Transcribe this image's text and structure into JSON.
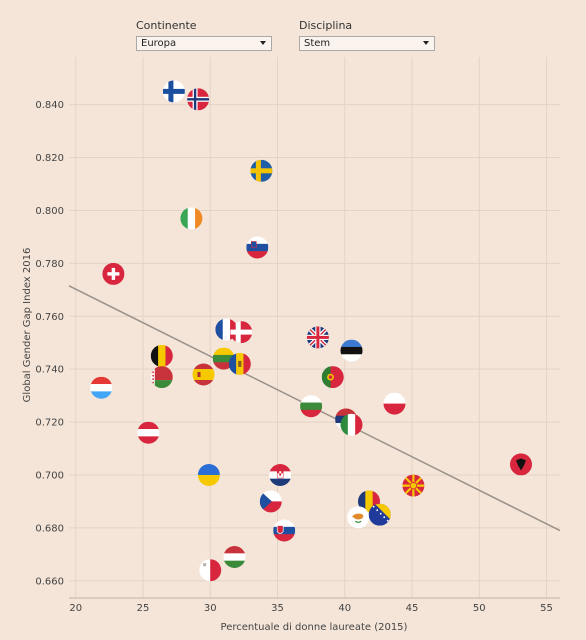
{
  "controls": {
    "continent": {
      "label": "Continente",
      "value": "Europa"
    },
    "discipline": {
      "label": "Disciplina",
      "value": "Stem"
    }
  },
  "chart_data": {
    "type": "scatter",
    "xlabel": "Percentuale di donne laureate (2015)",
    "ylabel": "Global Gender Gap Index 2016",
    "xlim": [
      19.5,
      56
    ],
    "ylim": [
      0.6535,
      0.858
    ],
    "xticks": [
      20,
      25,
      30,
      35,
      40,
      45,
      50,
      55
    ],
    "yticks": [
      0.66,
      0.68,
      0.7,
      0.72,
      0.74,
      0.76,
      0.78,
      0.8,
      0.82,
      0.84
    ],
    "grid": true,
    "trendline": {
      "x": [
        19.5,
        56
      ],
      "y": [
        0.7715,
        0.679
      ]
    },
    "points": [
      {
        "country": "Finland",
        "flag": "finland-flag",
        "x": 27.3,
        "y": 0.845
      },
      {
        "country": "Norway",
        "flag": "norway-flag",
        "x": 29.1,
        "y": 0.842
      },
      {
        "country": "Sweden",
        "flag": "sweden-flag",
        "x": 33.8,
        "y": 0.815
      },
      {
        "country": "Ireland",
        "flag": "ireland-flag",
        "x": 28.6,
        "y": 0.797
      },
      {
        "country": "Slovenia",
        "flag": "slovenia-flag",
        "x": 33.5,
        "y": 0.786
      },
      {
        "country": "Switzerland",
        "flag": "switzerland-flag",
        "x": 22.8,
        "y": 0.776
      },
      {
        "country": "France",
        "flag": "france-flag",
        "x": 31.2,
        "y": 0.755
      },
      {
        "country": "Denmark",
        "flag": "denmark-flag",
        "x": 32.3,
        "y": 0.754
      },
      {
        "country": "United Kingdom",
        "flag": "uk-flag",
        "x": 38.0,
        "y": 0.752
      },
      {
        "country": "Estonia",
        "flag": "estonia-flag",
        "x": 40.5,
        "y": 0.747
      },
      {
        "country": "Belgium",
        "flag": "belgium-flag",
        "x": 26.4,
        "y": 0.745
      },
      {
        "country": "Lithuania",
        "flag": "lithuania-flag",
        "x": 31.0,
        "y": 0.744
      },
      {
        "country": "Moldova",
        "flag": "moldova-flag",
        "x": 32.2,
        "y": 0.742
      },
      {
        "country": "Spain",
        "flag": "spain-flag",
        "x": 29.5,
        "y": 0.738
      },
      {
        "country": "Belarus",
        "flag": "belarus-flag",
        "x": 26.4,
        "y": 0.737
      },
      {
        "country": "Portugal",
        "flag": "portugal-flag",
        "x": 39.1,
        "y": 0.737
      },
      {
        "country": "Luxembourg",
        "flag": "luxembourg-flag",
        "x": 21.9,
        "y": 0.733
      },
      {
        "country": "Poland",
        "flag": "poland-flag",
        "x": 43.7,
        "y": 0.727
      },
      {
        "country": "Bulgaria",
        "flag": "bulgaria-flag",
        "x": 37.5,
        "y": 0.726
      },
      {
        "country": "Serbia",
        "flag": "serbia-flag",
        "x": 40.1,
        "y": 0.721
      },
      {
        "country": "Italy",
        "flag": "italy-flag",
        "x": 40.5,
        "y": 0.719
      },
      {
        "country": "Austria",
        "flag": "austria-flag",
        "x": 25.4,
        "y": 0.716
      },
      {
        "country": "Albania",
        "flag": "albania-flag",
        "x": 53.1,
        "y": 0.704
      },
      {
        "country": "Ukraine",
        "flag": "ukraine-flag",
        "x": 29.9,
        "y": 0.7
      },
      {
        "country": "Croatia",
        "flag": "croatia-flag",
        "x": 35.2,
        "y": 0.7
      },
      {
        "country": "Macedonia",
        "flag": "macedonia-flag",
        "x": 45.1,
        "y": 0.696
      },
      {
        "country": "Romania",
        "flag": "romania-flag",
        "x": 41.8,
        "y": 0.69
      },
      {
        "country": "Czech Republic",
        "flag": "czech-flag",
        "x": 34.5,
        "y": 0.69
      },
      {
        "country": "Cyprus",
        "flag": "cyprus-flag",
        "x": 41.0,
        "y": 0.684
      },
      {
        "country": "Bosnia and Herzegovina",
        "flag": "bosnia-flag",
        "x": 42.6,
        "y": 0.685
      },
      {
        "country": "Slovakia",
        "flag": "slovakia-flag",
        "x": 35.5,
        "y": 0.679
      },
      {
        "country": "Hungary",
        "flag": "hungary-flag",
        "x": 31.8,
        "y": 0.669
      },
      {
        "country": "Malta",
        "flag": "malta-flag",
        "x": 30.0,
        "y": 0.664
      }
    ]
  }
}
